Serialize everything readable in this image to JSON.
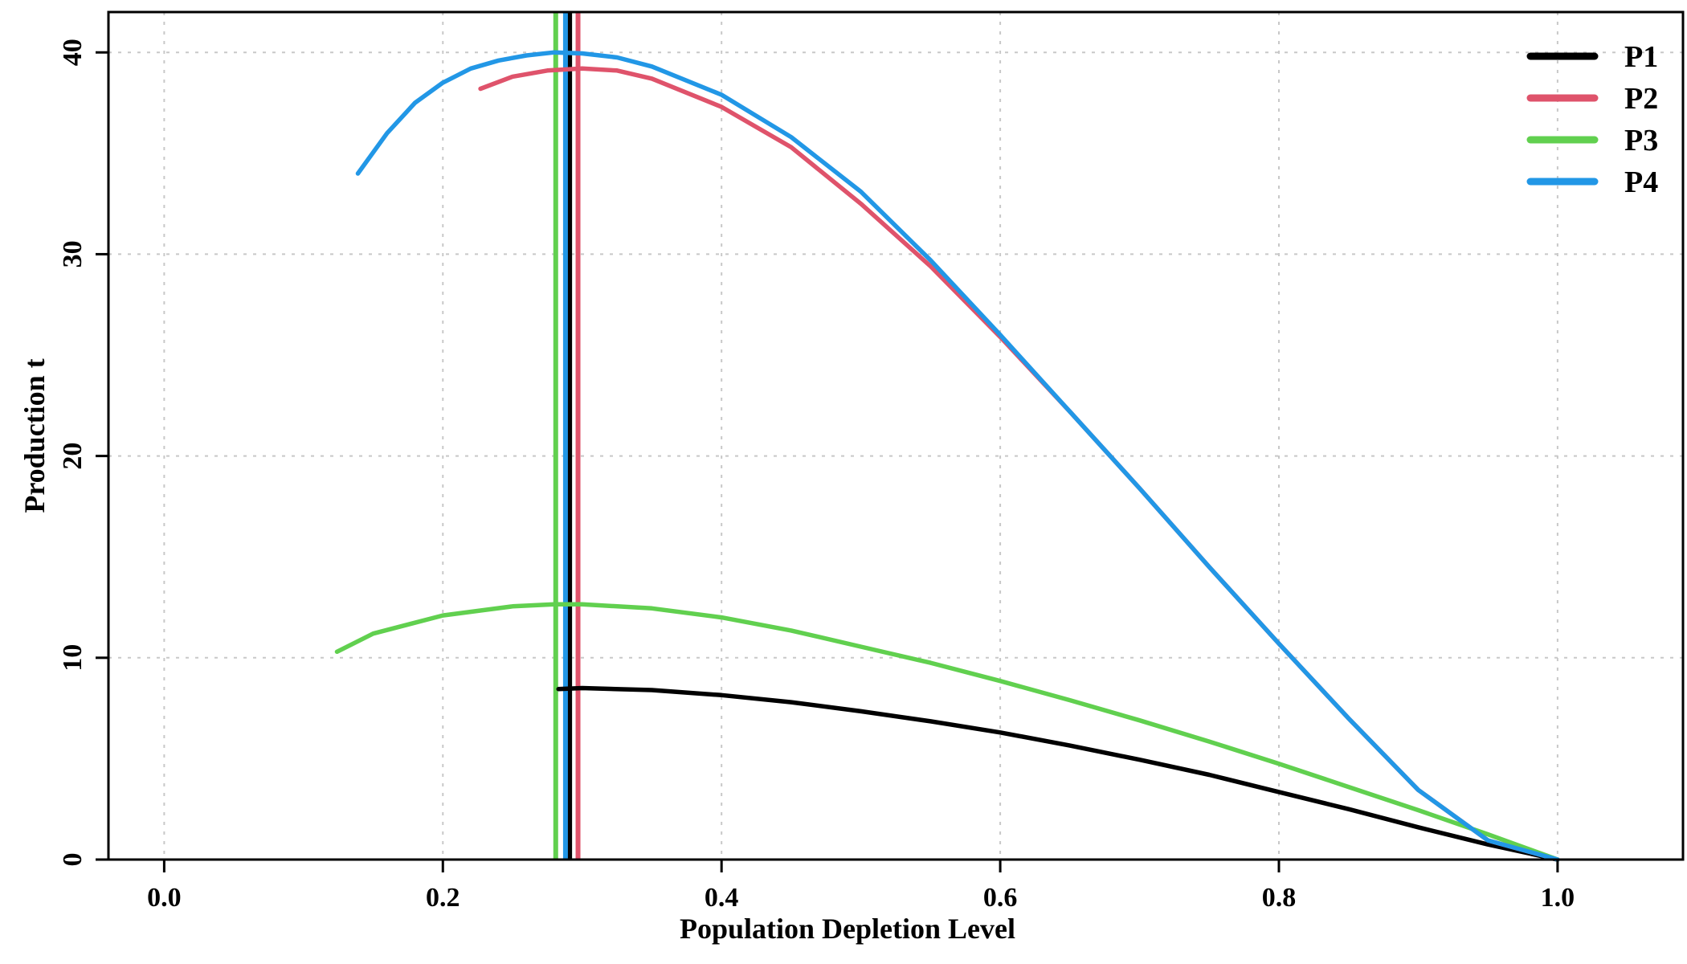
{
  "chart_data": {
    "type": "line",
    "xlabel": "Population Depletion Level",
    "ylabel": "Production t",
    "xlim": [
      -0.04,
      1.09
    ],
    "ylim": [
      0,
      42
    ],
    "x_ticks": [
      0.0,
      0.2,
      0.4,
      0.6,
      0.8,
      1.0
    ],
    "x_tick_labels": [
      "0.0",
      "0.2",
      "0.4",
      "0.6",
      "0.8",
      "1.0"
    ],
    "y_ticks": [
      0,
      10,
      20,
      30,
      40
    ],
    "y_tick_labels": [
      "0",
      "10",
      "20",
      "30",
      "40"
    ],
    "grid": true,
    "legend_position": "top-right",
    "series": [
      {
        "name": "P1",
        "color": "#000000",
        "x": [
          0.283,
          0.3,
          0.35,
          0.4,
          0.45,
          0.5,
          0.55,
          0.6,
          0.65,
          0.7,
          0.75,
          0.8,
          0.85,
          0.9,
          0.95,
          1.0
        ],
        "y": [
          8.45,
          8.5,
          8.4,
          8.15,
          7.8,
          7.35,
          6.85,
          6.3,
          5.65,
          4.95,
          4.2,
          3.35,
          2.5,
          1.6,
          0.75,
          0.0
        ],
        "vline": 0.291
      },
      {
        "name": "P2",
        "color": "#df536b",
        "x": [
          0.227,
          0.25,
          0.275,
          0.3,
          0.325,
          0.35,
          0.4,
          0.45,
          0.5,
          0.55,
          0.6,
          0.65,
          0.7,
          0.75,
          0.8,
          0.85,
          0.9,
          0.95,
          1.0
        ],
        "y": [
          38.2,
          38.8,
          39.1,
          39.2,
          39.1,
          38.7,
          37.3,
          35.3,
          32.5,
          29.4,
          25.9,
          22.2,
          18.4,
          14.5,
          10.7,
          7.0,
          3.45,
          0.95,
          0.0
        ],
        "vline": 0.297
      },
      {
        "name": "P3",
        "color": "#61d04f",
        "x": [
          0.124,
          0.15,
          0.2,
          0.25,
          0.28,
          0.3,
          0.35,
          0.4,
          0.45,
          0.5,
          0.55,
          0.6,
          0.65,
          0.7,
          0.75,
          0.8,
          0.85,
          0.9,
          0.95,
          1.0
        ],
        "y": [
          10.3,
          11.2,
          12.1,
          12.55,
          12.65,
          12.65,
          12.45,
          12.0,
          11.35,
          10.55,
          9.75,
          8.85,
          7.9,
          6.9,
          5.85,
          4.75,
          3.6,
          2.45,
          1.25,
          0.0
        ],
        "vline": 0.281
      },
      {
        "name": "P4",
        "color": "#2297e6",
        "x": [
          0.139,
          0.16,
          0.18,
          0.2,
          0.22,
          0.24,
          0.26,
          0.28,
          0.3,
          0.325,
          0.35,
          0.4,
          0.45,
          0.5,
          0.55,
          0.6,
          0.65,
          0.7,
          0.75,
          0.8,
          0.85,
          0.9,
          0.95,
          1.0
        ],
        "y": [
          34.0,
          36.0,
          37.5,
          38.5,
          39.2,
          39.6,
          39.85,
          40.0,
          39.95,
          39.75,
          39.3,
          37.9,
          35.8,
          33.1,
          29.7,
          26.0,
          22.2,
          18.4,
          14.5,
          10.7,
          7.0,
          3.45,
          0.95,
          0.0
        ],
        "vline": 0.288
      }
    ]
  }
}
